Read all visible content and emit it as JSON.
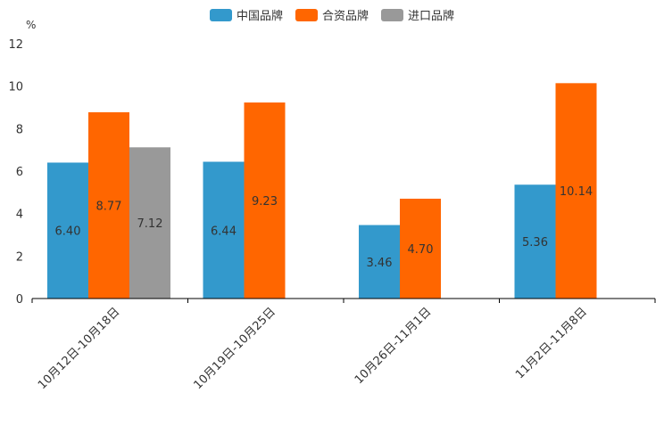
{
  "chart_data": {
    "type": "bar",
    "title": "",
    "unit": "%",
    "xlabel": "",
    "ylabel": "%",
    "ylim": [
      0,
      12
    ],
    "yticks": [
      "0",
      "2",
      "4",
      "6",
      "8",
      "10",
      "12"
    ],
    "grid": false,
    "legend_position": "top-center",
    "categories": [
      "10月12日-10月18日",
      "10月19日-10月25日",
      "10月26日-11月1日",
      "11月2日-11月8日"
    ],
    "series": [
      {
        "name": "中国品牌",
        "color": "#3399CC",
        "values": [
          6.4,
          6.44,
          3.46,
          5.36
        ],
        "labels": [
          "6.40",
          "6.44",
          "3.46",
          "5.36"
        ]
      },
      {
        "name": "合资品牌",
        "color": "#FF6600",
        "values": [
          8.77,
          9.23,
          4.7,
          10.14
        ],
        "labels": [
          "8.77",
          "9.23",
          "4.70",
          "10.14"
        ]
      },
      {
        "name": "进口品牌",
        "color": "#999999",
        "values": [
          7.12,
          null,
          null,
          null
        ],
        "labels": [
          "7.12",
          null,
          null,
          null
        ]
      }
    ]
  }
}
